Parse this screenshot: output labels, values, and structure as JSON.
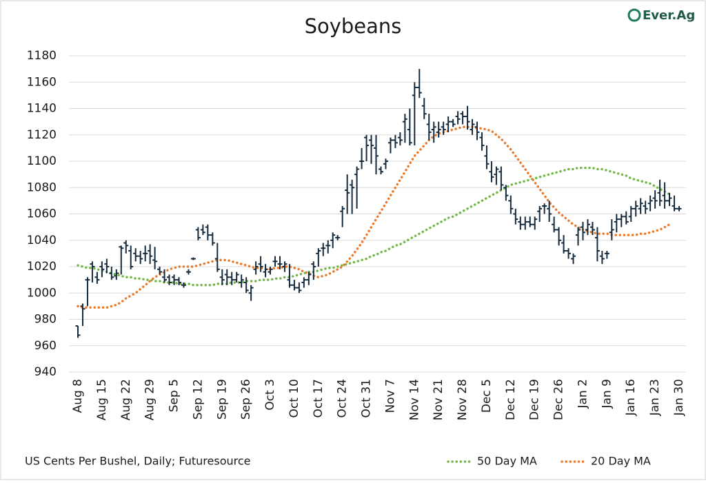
{
  "chart_data": {
    "type": "ohlc",
    "title": "Soybeans",
    "logo": "Ever.Ag",
    "footnote": "US Cents Per Bushel, Daily; Futuresource",
    "bar_color": "#13293d",
    "categories": [
      "Aug 8",
      null,
      null,
      null,
      null,
      "Aug 15",
      null,
      null,
      null,
      null,
      "Aug 22",
      null,
      null,
      null,
      null,
      "Aug 29",
      null,
      null,
      null,
      null,
      "Sep 5",
      null,
      null,
      null,
      null,
      "Sep 12",
      null,
      null,
      null,
      null,
      "Sep 19",
      null,
      null,
      null,
      null,
      "Sep 26",
      null,
      null,
      null,
      null,
      "Oct 3",
      null,
      null,
      null,
      null,
      "Oct 10",
      null,
      null,
      null,
      null,
      "Oct 17",
      null,
      null,
      null,
      null,
      "Oct 24",
      null,
      null,
      null,
      null,
      "Oct 31",
      null,
      null,
      null,
      null,
      "Nov 7",
      null,
      null,
      null,
      null,
      "Nov 14",
      null,
      null,
      null,
      null,
      "Nov 21",
      null,
      null,
      null,
      null,
      "Nov 28",
      null,
      null,
      null,
      null,
      "Dec 5",
      null,
      null,
      null,
      null,
      "Dec 12",
      null,
      null,
      null,
      null,
      "Dec 19",
      null,
      null,
      null,
      null,
      "Dec 26",
      null,
      null,
      null,
      null,
      "Jan 2",
      null,
      null,
      null,
      null,
      "Jan 9",
      null,
      null,
      null,
      null,
      "Jan 16",
      null,
      null,
      null,
      null,
      "Jan 23",
      null,
      null,
      null,
      null,
      "Jan 30"
    ],
    "open": [
      975,
      990,
      1010,
      1022,
      1012,
      1020,
      1022,
      1015,
      1013,
      1035,
      1038,
      1032,
      1030,
      1028,
      1030,
      1032,
      1025,
      1018,
      1012,
      1012,
      1012,
      1010,
      1006,
      1016,
      1026,
      1048,
      1048,
      1050,
      1044,
      1026,
      1012,
      1014,
      1012,
      1010,
      1008,
      1008,
      1000,
      1018,
      1022,
      1016,
      1016,
      1024,
      1022,
      1020,
      1010,
      1006,
      1004,
      1008,
      1010,
      1022,
      1030,
      1034,
      1036,
      1040,
      1042,
      1062,
      1078,
      1082,
      1090,
      1100,
      1118,
      1116,
      1110,
      1094,
      1098,
      1114,
      1116,
      1118,
      1130,
      1124,
      1150,
      1156,
      1142,
      1128,
      1124,
      1122,
      1126,
      1128,
      1130,
      1134,
      1136,
      1134,
      1124,
      1126,
      1118,
      1104,
      1092,
      1090,
      1092,
      1080,
      1070,
      1060,
      1054,
      1052,
      1054,
      1052,
      1062,
      1066,
      1064,
      1052,
      1048,
      1038,
      1032,
      1026,
      1044,
      1050,
      1048,
      1050,
      1042,
      1028,
      1030,
      1046,
      1054,
      1056,
      1058,
      1058,
      1064,
      1064,
      1066,
      1068,
      1072,
      1076,
      1074,
      1070,
      1066,
      1064
    ],
    "high": [
      975,
      992,
      1012,
      1024,
      1016,
      1024,
      1026,
      1020,
      1018,
      1036,
      1040,
      1036,
      1034,
      1032,
      1036,
      1037,
      1035,
      1020,
      1018,
      1014,
      1014,
      1012,
      1008,
      1018,
      1027,
      1050,
      1052,
      1052,
      1046,
      1038,
      1018,
      1018,
      1016,
      1016,
      1014,
      1012,
      1006,
      1024,
      1028,
      1022,
      1020,
      1028,
      1028,
      1024,
      1022,
      1010,
      1008,
      1012,
      1016,
      1024,
      1034,
      1038,
      1040,
      1046,
      1044,
      1066,
      1090,
      1086,
      1096,
      1110,
      1120,
      1120,
      1120,
      1096,
      1102,
      1118,
      1120,
      1122,
      1136,
      1140,
      1160,
      1170,
      1148,
      1136,
      1130,
      1130,
      1130,
      1134,
      1132,
      1138,
      1138,
      1142,
      1132,
      1130,
      1122,
      1112,
      1100,
      1096,
      1096,
      1082,
      1074,
      1064,
      1058,
      1058,
      1058,
      1058,
      1066,
      1068,
      1070,
      1058,
      1050,
      1044,
      1034,
      1030,
      1050,
      1054,
      1056,
      1054,
      1050,
      1032,
      1032,
      1056,
      1060,
      1060,
      1062,
      1066,
      1070,
      1072,
      1070,
      1074,
      1078,
      1086,
      1084,
      1076,
      1074,
      1066
    ],
    "low": [
      966,
      975,
      990,
      1008,
      1007,
      1012,
      1015,
      1010,
      1010,
      1014,
      1030,
      1018,
      1024,
      1022,
      1024,
      1022,
      1018,
      1014,
      1008,
      1006,
      1006,
      1006,
      1004,
      1014,
      1025,
      1040,
      1044,
      1040,
      1036,
      1016,
      1006,
      1006,
      1006,
      1008,
      1004,
      1000,
      994,
      1014,
      1016,
      1012,
      1014,
      1020,
      1018,
      1016,
      1004,
      1002,
      1000,
      1004,
      1006,
      1010,
      1020,
      1028,
      1030,
      1034,
      1040,
      1050,
      1060,
      1060,
      1064,
      1094,
      1100,
      1098,
      1090,
      1090,
      1094,
      1106,
      1110,
      1112,
      1114,
      1112,
      1112,
      1148,
      1132,
      1116,
      1114,
      1118,
      1120,
      1122,
      1126,
      1128,
      1128,
      1124,
      1120,
      1116,
      1108,
      1094,
      1084,
      1082,
      1078,
      1070,
      1060,
      1052,
      1048,
      1048,
      1050,
      1048,
      1054,
      1060,
      1054,
      1046,
      1036,
      1030,
      1026,
      1022,
      1036,
      1040,
      1044,
      1044,
      1024,
      1022,
      1026,
      1040,
      1046,
      1050,
      1052,
      1054,
      1058,
      1060,
      1060,
      1062,
      1064,
      1066,
      1064,
      1066,
      1062,
      1062
    ],
    "close": [
      968,
      988,
      1010,
      1020,
      1010,
      1018,
      1020,
      1012,
      1015,
      1034,
      1036,
      1020,
      1028,
      1026,
      1030,
      1028,
      1024,
      1016,
      1010,
      1008,
      1010,
      1008,
      1006,
      1016,
      1026,
      1042,
      1046,
      1044,
      1038,
      1018,
      1010,
      1012,
      1010,
      1014,
      1010,
      1002,
      1004,
      1020,
      1020,
      1018,
      1018,
      1024,
      1022,
      1022,
      1006,
      1004,
      1002,
      1010,
      1014,
      1020,
      1032,
      1034,
      1036,
      1044,
      1042,
      1064,
      1076,
      1080,
      1094,
      1100,
      1112,
      1112,
      1104,
      1092,
      1100,
      1116,
      1114,
      1116,
      1132,
      1114,
      1156,
      1152,
      1136,
      1122,
      1126,
      1124,
      1124,
      1130,
      1128,
      1132,
      1134,
      1130,
      1128,
      1122,
      1112,
      1098,
      1088,
      1094,
      1082,
      1074,
      1064,
      1056,
      1052,
      1054,
      1052,
      1056,
      1064,
      1066,
      1060,
      1048,
      1040,
      1032,
      1030,
      1028,
      1048,
      1046,
      1052,
      1048,
      1032,
      1026,
      1030,
      1048,
      1056,
      1058,
      1054,
      1064,
      1066,
      1068,
      1064,
      1070,
      1070,
      1070,
      1070,
      1072,
      1064,
      1064
    ],
    "series": [
      {
        "name": "50 Day MA",
        "color": "#70b843",
        "values": [
          1021,
          1020,
          1019,
          1019,
          1018,
          1017,
          1016,
          1015,
          1014,
          1013,
          1012,
          1012,
          1011,
          1011,
          1010,
          1010,
          1009,
          1009,
          1008,
          1008,
          1008,
          1007,
          1007,
          1007,
          1006,
          1006,
          1006,
          1006,
          1006,
          1007,
          1007,
          1007,
          1008,
          1008,
          1008,
          1009,
          1009,
          1009,
          1010,
          1010,
          1010,
          1011,
          1011,
          1012,
          1012,
          1013,
          1014,
          1015,
          1016,
          1016,
          1017,
          1018,
          1019,
          1019,
          1020,
          1021,
          1022,
          1023,
          1024,
          1025,
          1026,
          1028,
          1029,
          1031,
          1032,
          1034,
          1036,
          1037,
          1039,
          1041,
          1043,
          1045,
          1047,
          1049,
          1051,
          1053,
          1055,
          1057,
          1058,
          1060,
          1062,
          1064,
          1066,
          1068,
          1070,
          1072,
          1074,
          1076,
          1078,
          1080,
          1082,
          1083,
          1084,
          1085,
          1086,
          1087,
          1088,
          1089,
          1090,
          1091,
          1092,
          1093,
          1094,
          1094,
          1095,
          1095,
          1095,
          1095,
          1094,
          1094,
          1093,
          1092,
          1091,
          1090,
          1089,
          1087,
          1086,
          1085,
          1084,
          1083,
          1081,
          1079,
          1077,
          1075,
          null,
          null
        ]
      },
      {
        "name": "20 Day MA",
        "color": "#e87a2c",
        "values": [
          990,
          989,
          989,
          989,
          989,
          989,
          989,
          990,
          991,
          993,
          996,
          998,
          1000,
          1003,
          1006,
          1009,
          1012,
          1014,
          1016,
          1018,
          1019,
          1020,
          1020,
          1020,
          1020,
          1021,
          1022,
          1023,
          1024,
          1025,
          1025,
          1025,
          1024,
          1023,
          1022,
          1021,
          1020,
          1019,
          1019,
          1018,
          1018,
          1019,
          1019,
          1020,
          1020,
          1019,
          1018,
          1016,
          1015,
          1013,
          1012,
          1013,
          1014,
          1016,
          1018,
          1020,
          1024,
          1028,
          1033,
          1038,
          1044,
          1050,
          1056,
          1062,
          1068,
          1074,
          1080,
          1086,
          1092,
          1098,
          1104,
          1108,
          1112,
          1116,
          1119,
          1121,
          1122,
          1123,
          1124,
          1125,
          1126,
          1126,
          1126,
          1125,
          1125,
          1124,
          1123,
          1120,
          1117,
          1113,
          1109,
          1104,
          1099,
          1094,
          1089,
          1084,
          1079,
          1074,
          1069,
          1065,
          1061,
          1058,
          1055,
          1052,
          1050,
          1048,
          1047,
          1046,
          1045,
          1045,
          1045,
          1044,
          1044,
          1044,
          1044,
          1044,
          1044,
          1045,
          1045,
          1046,
          1047,
          1048,
          1050,
          1052,
          null,
          null
        ]
      }
    ],
    "ylim": [
      940,
      1180
    ],
    "yticks": [
      940,
      960,
      980,
      1000,
      1020,
      1040,
      1060,
      1080,
      1100,
      1120,
      1140,
      1160,
      1180
    ],
    "grid": true
  }
}
